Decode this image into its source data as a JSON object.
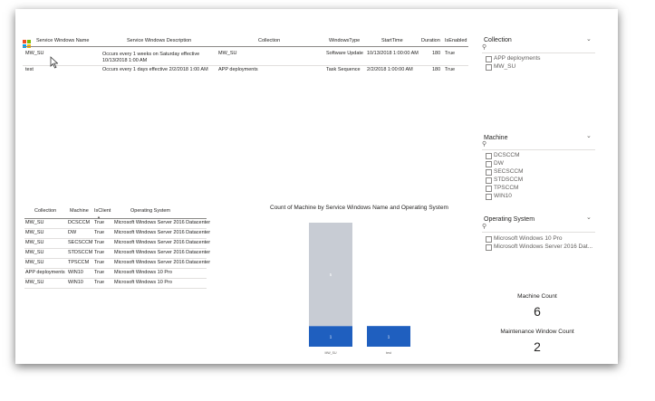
{
  "table1": {
    "columns": [
      "Service Windows Name",
      "Service Windows Description",
      "Collection",
      "WindowsType",
      "StartTime",
      "Duration",
      "IsEnabled"
    ],
    "rows": [
      [
        "MW_SU",
        "Occurs every 1 weeks on Saturday effective 10/13/2018 1:00 AM",
        "MW_SU",
        "Software Update",
        "10/13/2018 1:00:00 AM",
        "180",
        "True"
      ],
      [
        "test",
        "Occurs every 1 days effective 2/2/2018 1:00 AM",
        "APP deployments",
        "Task Sequence",
        "2/2/2018 1:00:00 AM",
        "180",
        "True"
      ]
    ]
  },
  "table2": {
    "columns": [
      "Collection",
      "Machine",
      "IsClient",
      "Operating System"
    ],
    "rows": [
      [
        "MW_SU",
        "DCSCCM",
        "True",
        "Microsoft Windows Server 2016 Datacenter"
      ],
      [
        "MW_SU",
        "DW",
        "True",
        "Microsoft Windows Server 2016 Datacenter"
      ],
      [
        "MW_SU",
        "SECSCCM",
        "True",
        "Microsoft Windows Server 2016 Datacenter"
      ],
      [
        "MW_SU",
        "STDSCCM",
        "True",
        "Microsoft Windows Server 2016 Datacenter"
      ],
      [
        "MW_SU",
        "TPSCCM",
        "True",
        "Microsoft Windows Server 2016 Datacenter"
      ],
      [
        "APP deployments",
        "WIN10",
        "True",
        "Microsoft Windows 10 Pro"
      ],
      [
        "MW_SU",
        "WIN10",
        "True",
        "Microsoft Windows 10 Pro"
      ]
    ]
  },
  "slicers": {
    "collection": {
      "title": "Collection",
      "items": [
        "APP deployments",
        "MW_SU"
      ]
    },
    "machine": {
      "title": "Machine",
      "items": [
        "DCSCCM",
        "DW",
        "SECSCCM",
        "STDSCCM",
        "TPSCCM",
        "WIN10"
      ]
    },
    "os": {
      "title": "Operating System",
      "items": [
        "Microsoft Windows 10 Pro",
        "Microsoft Windows Server 2016 Dat..."
      ]
    }
  },
  "cards": {
    "machine_count": {
      "label": "Machine Count",
      "value": "6"
    },
    "maintenance_count": {
      "label": "Maintenance Window Count",
      "value": "2"
    }
  },
  "colors": {
    "dark_blue": "#1f5fbf",
    "gray": "#c8ccd4"
  },
  "chart_data": {
    "type": "bar",
    "title": "Count of Machine by Service Windows Name and Operating System",
    "categories": [
      "MW_SU",
      "test"
    ],
    "series": [
      {
        "values": [
          1,
          1
        ]
      },
      {
        "values": [
          5,
          0
        ]
      }
    ],
    "ylim": [
      0,
      6
    ],
    "grid": false
  }
}
